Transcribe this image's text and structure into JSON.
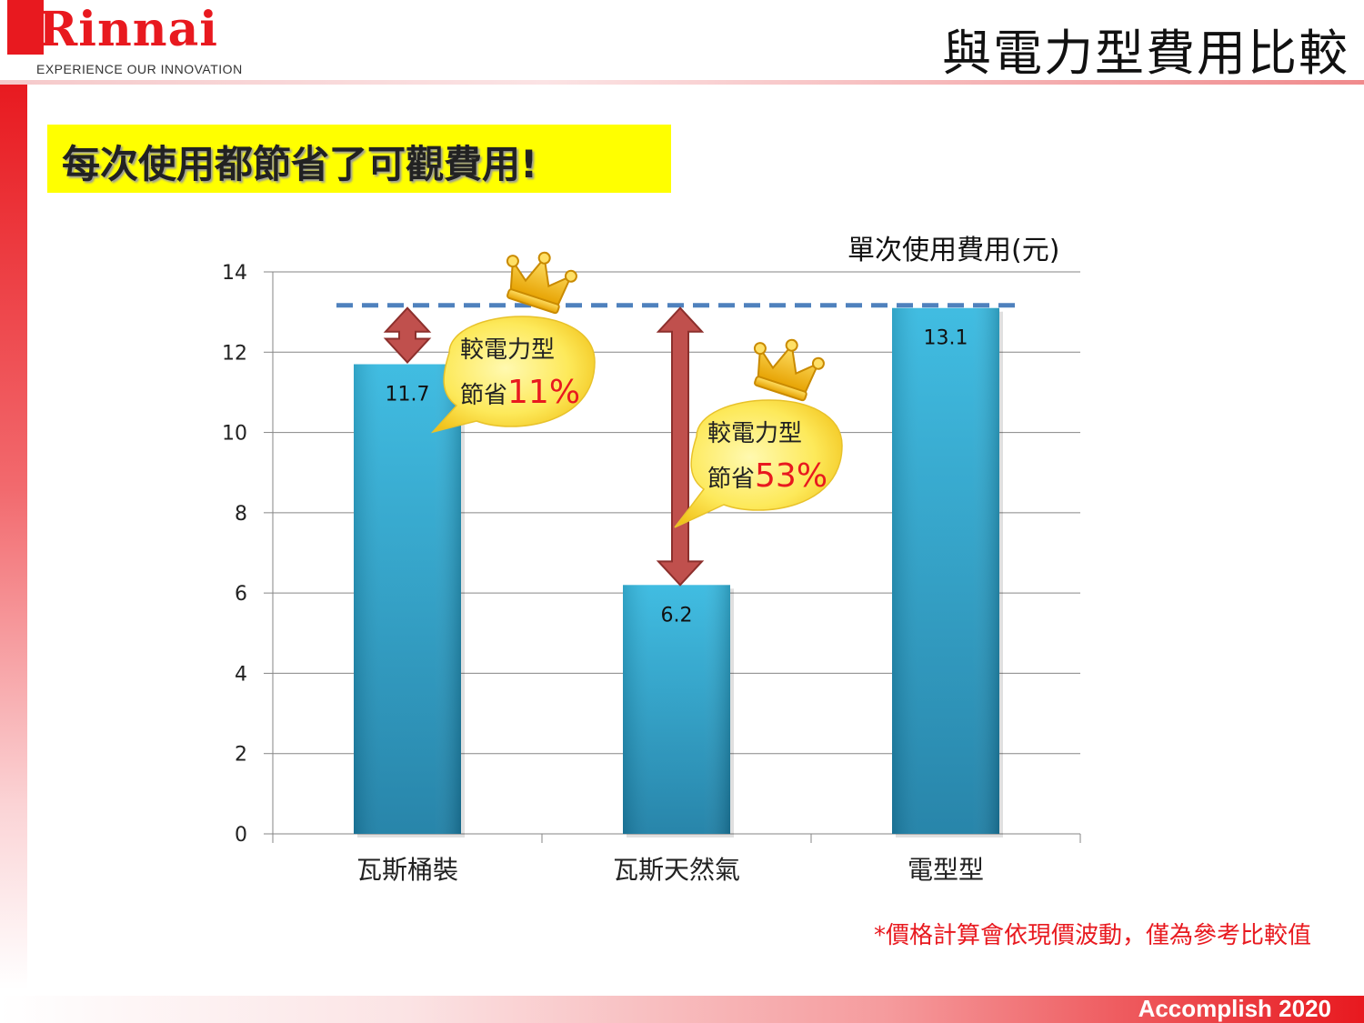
{
  "header": {
    "brand": "Rinnai",
    "tagline": "EXPERIENCE OUR INNOVATION",
    "title": "與電力型費用比較"
  },
  "headline": "每次使用都節省了可觀費用!",
  "colors": {
    "brand_red": "#e8191f",
    "bar_blue": "#2ba6d0",
    "highlight_yellow": "#ffff00",
    "arrow_red": "#c0504d",
    "reference_line": "#4f81bd"
  },
  "chart_data": {
    "type": "bar",
    "title": "",
    "unit_label": "單次使用費用(元)",
    "categories": [
      "瓦斯桶裝",
      "瓦斯天然氣",
      "電型型"
    ],
    "values": [
      11.7,
      6.2,
      13.1
    ],
    "value_labels": [
      "11.7",
      "6.2",
      "13.1"
    ],
    "ylim": [
      0,
      14
    ],
    "yticks": [
      0,
      2,
      4,
      6,
      8,
      10,
      12,
      14
    ],
    "grid": true,
    "reference_line_value": 13.1,
    "annotations": [
      {
        "line1": "較電力型",
        "line2_prefix": "節省",
        "percent": "11%",
        "category": "瓦斯桶裝",
        "from": 11.7,
        "to": 13.1
      },
      {
        "line1": "較電力型",
        "line2_prefix": "節省",
        "percent": "53%",
        "category": "瓦斯天然氣",
        "from": 6.2,
        "to": 13.1
      }
    ]
  },
  "footnote": "*價格計算會依現價波動，僅為參考比較值",
  "footer": "Accomplish 2020"
}
